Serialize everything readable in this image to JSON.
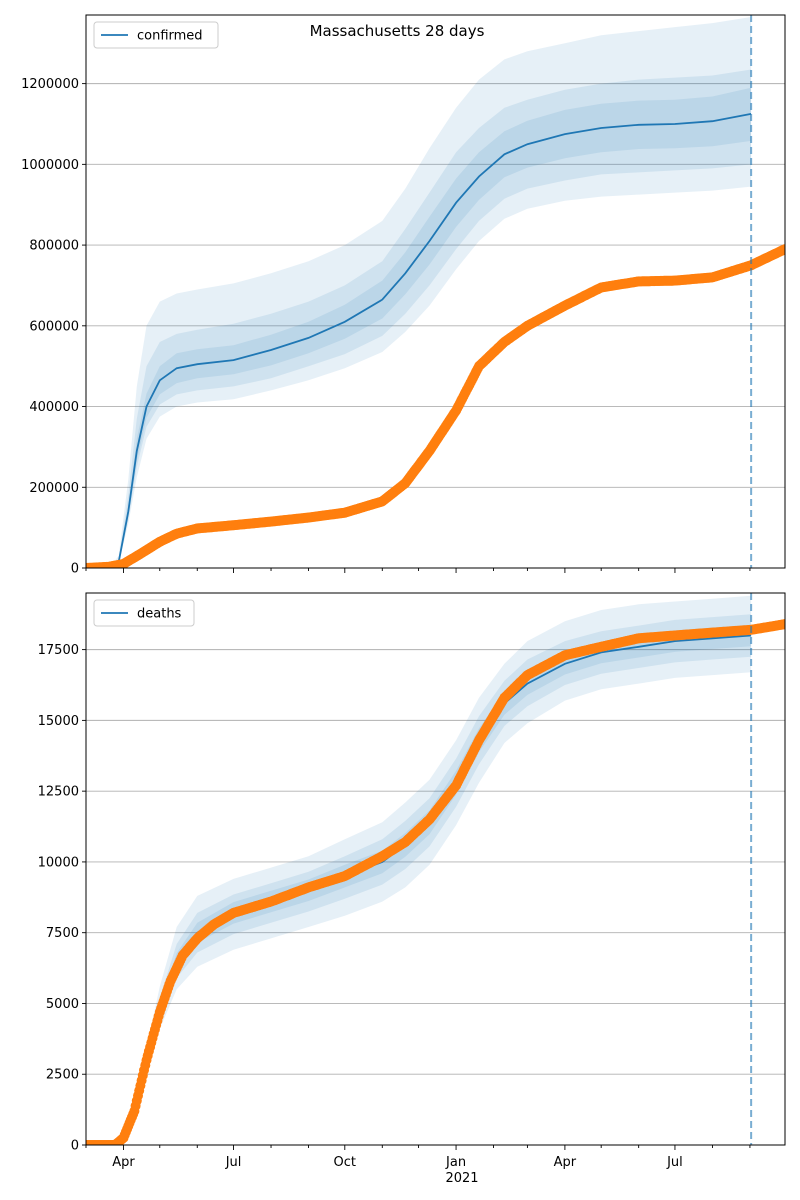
{
  "figure": {
    "title": "Massachusetts 28 days"
  },
  "colors": {
    "model": "#1f77b4",
    "observed": "#ff7f0e",
    "band": "#1f77b4",
    "grid": "#b0b0b0",
    "forecast_line": "#1f77b4"
  },
  "x_axis": {
    "type": "date",
    "range": [
      "2020-03-01",
      "2021-09-30"
    ],
    "major_ticks": [
      {
        "date": "2020-04-01",
        "label": "Apr"
      },
      {
        "date": "2020-07-01",
        "label": "Jul"
      },
      {
        "date": "2020-10-01",
        "label": "Oct"
      },
      {
        "date": "2021-01-01",
        "label": "Jan"
      },
      {
        "date": "2021-04-01",
        "label": "Apr"
      },
      {
        "date": "2021-07-01",
        "label": "Jul"
      }
    ],
    "year_label": "2021",
    "forecast_date": "2021-09-02"
  },
  "chart_data": [
    {
      "type": "line",
      "legend": "confirmed",
      "legend_position": "upper-left",
      "grid": "horizontal",
      "ylim": [
        0,
        1370000
      ],
      "yticks": [
        0,
        200000,
        400000,
        600000,
        800000,
        1000000,
        1200000
      ],
      "model": {
        "name": "confirmed",
        "x": [
          "2020-03-01",
          "2020-03-20",
          "2020-03-28",
          "2020-04-05",
          "2020-04-12",
          "2020-04-20",
          "2020-05-01",
          "2020-05-15",
          "2020-06-01",
          "2020-07-01",
          "2020-08-01",
          "2020-09-01",
          "2020-10-01",
          "2020-11-01",
          "2020-11-20",
          "2020-12-10",
          "2021-01-01",
          "2021-01-20",
          "2021-02-10",
          "2021-03-01",
          "2021-04-01",
          "2021-05-01",
          "2021-06-01",
          "2021-07-01",
          "2021-08-01",
          "2021-09-02"
        ],
        "y": [
          0,
          0,
          15000,
          140000,
          290000,
          400000,
          465000,
          495000,
          505000,
          515000,
          540000,
          570000,
          610000,
          665000,
          730000,
          810000,
          905000,
          970000,
          1025000,
          1050000,
          1075000,
          1090000,
          1098000,
          1100000,
          1107000,
          1125000
        ],
        "bands": [
          {
            "lower": [
              0,
              0,
              9000,
              110000,
              225000,
              320000,
              375000,
              400000,
              410000,
              418000,
              440000,
              465000,
              495000,
              535000,
              585000,
              650000,
              740000,
              810000,
              865000,
              890000,
              910000,
              920000,
              925000,
              930000,
              935000,
              945000
            ],
            "upper": [
              0,
              0,
              30000,
              220000,
              450000,
              600000,
              660000,
              680000,
              690000,
              705000,
              730000,
              760000,
              800000,
              860000,
              940000,
              1040000,
              1140000,
              1210000,
              1260000,
              1280000,
              1300000,
              1320000,
              1330000,
              1340000,
              1350000,
              1365000
            ]
          },
          {
            "lower": [
              0,
              0,
              11000,
              120000,
              250000,
              350000,
              405000,
              430000,
              440000,
              450000,
              470000,
              500000,
              530000,
              575000,
              630000,
              700000,
              790000,
              860000,
              915000,
              940000,
              960000,
              975000,
              980000,
              985000,
              990000,
              1000000
            ],
            "upper": [
              0,
              0,
              22000,
              180000,
              370000,
              500000,
              560000,
              580000,
              590000,
              605000,
              630000,
              660000,
              700000,
              760000,
              840000,
              930000,
              1030000,
              1090000,
              1140000,
              1160000,
              1185000,
              1200000,
              1210000,
              1215000,
              1220000,
              1235000
            ]
          },
          {
            "lower": [
              0,
              0,
              13000,
              128000,
              265000,
              372000,
              430000,
              458000,
              470000,
              480000,
              502000,
              532000,
              568000,
              618000,
              678000,
              752000,
              845000,
              912000,
              968000,
              992000,
              1015000,
              1030000,
              1038000,
              1040000,
              1045000,
              1058000
            ],
            "upper": [
              0,
              0,
              18000,
              155000,
              320000,
              432000,
              500000,
              532000,
              542000,
              552000,
              578000,
              610000,
              652000,
              712000,
              782000,
              870000,
              965000,
              1030000,
              1082000,
              1108000,
              1135000,
              1150000,
              1158000,
              1160000,
              1168000,
              1190000
            ]
          }
        ]
      },
      "observed": {
        "x": [
          "2020-03-01",
          "2020-03-20",
          "2020-04-01",
          "2020-04-15",
          "2020-05-01",
          "2020-05-15",
          "2020-06-01",
          "2020-07-01",
          "2020-08-01",
          "2020-09-01",
          "2020-10-01",
          "2020-11-01",
          "2020-11-20",
          "2020-12-10",
          "2021-01-01",
          "2021-01-20",
          "2021-02-10",
          "2021-03-01",
          "2021-04-01",
          "2021-05-01",
          "2021-06-01",
          "2021-07-01",
          "2021-08-01",
          "2021-09-02",
          "2021-09-30"
        ],
        "y": [
          0,
          3000,
          10000,
          35000,
          65000,
          85000,
          98000,
          106000,
          115000,
          125000,
          137000,
          165000,
          210000,
          290000,
          390000,
          500000,
          560000,
          600000,
          650000,
          695000,
          710000,
          712000,
          720000,
          750000,
          790000
        ]
      }
    },
    {
      "type": "line",
      "legend": "deaths",
      "legend_position": "upper-left",
      "grid": "horizontal",
      "ylim": [
        0,
        19500
      ],
      "yticks": [
        0,
        2500,
        5000,
        7500,
        10000,
        12500,
        15000,
        17500
      ],
      "model": {
        "name": "deaths",
        "x": [
          "2020-03-01",
          "2020-03-20",
          "2020-04-01",
          "2020-04-15",
          "2020-05-01",
          "2020-05-15",
          "2020-06-01",
          "2020-07-01",
          "2020-08-01",
          "2020-09-01",
          "2020-10-01",
          "2020-11-01",
          "2020-11-20",
          "2020-12-10",
          "2021-01-01",
          "2021-01-20",
          "2021-02-10",
          "2021-03-01",
          "2021-04-01",
          "2021-05-01",
          "2021-06-01",
          "2021-07-01",
          "2021-08-01",
          "2021-09-02"
        ],
        "y": [
          0,
          0,
          200,
          2000,
          4800,
          6500,
          7500,
          8200,
          8600,
          9000,
          9500,
          10000,
          10600,
          11400,
          12800,
          14300,
          15600,
          16300,
          17000,
          17400,
          17600,
          17800,
          17900,
          18000
        ],
        "bands": [
          {
            "lower": [
              0,
              0,
              150,
              1700,
              4100,
              5500,
              6300,
              6900,
              7300,
              7700,
              8100,
              8600,
              9100,
              9900,
              11300,
              12800,
              14200,
              14900,
              15700,
              16100,
              16300,
              16500,
              16600,
              16700
            ],
            "upper": [
              0,
              0,
              260,
              2400,
              5600,
              7700,
              8800,
              9400,
              9800,
              10200,
              10800,
              11400,
              12100,
              12900,
              14300,
              15800,
              17000,
              17800,
              18500,
              18900,
              19100,
              19200,
              19300,
              19400
            ]
          },
          {
            "lower": [
              0,
              0,
              170,
              1850,
              4400,
              5900,
              6800,
              7450,
              7850,
              8250,
              8700,
              9200,
              9750,
              10550,
              11950,
              13450,
              14800,
              15500,
              16250,
              16650,
              16850,
              17050,
              17150,
              17250
            ],
            "upper": [
              0,
              0,
              230,
              2200,
              5200,
              7100,
              8200,
              8850,
              9250,
              9650,
              10200,
              10800,
              11450,
              12250,
              13650,
              15150,
              16400,
              17150,
              17800,
              18150,
              18350,
              18550,
              18650,
              18750
            ]
          },
          {
            "lower": [
              0,
              0,
              185,
              1930,
              4620,
              6220,
              7150,
              7820,
              8220,
              8620,
              9100,
              9600,
              10180,
              10980,
              12380,
              13880,
              15200,
              15900,
              16620,
              17020,
              17220,
              17420,
              17520,
              17620
            ],
            "upper": [
              0,
              0,
              215,
              2080,
              4980,
              6780,
              7850,
              8580,
              8980,
              9380,
              9900,
              10400,
              11020,
              11820,
              13220,
              14720,
              16000,
              16700,
              17380,
              17780,
              17980,
              18180,
              18280,
              18380
            ]
          }
        ]
      },
      "observed": {
        "x": [
          "2020-03-01",
          "2020-03-25",
          "2020-04-01",
          "2020-04-10",
          "2020-04-20",
          "2020-05-01",
          "2020-05-10",
          "2020-05-20",
          "2020-06-01",
          "2020-06-15",
          "2020-07-01",
          "2020-08-01",
          "2020-09-01",
          "2020-10-01",
          "2020-11-01",
          "2020-11-20",
          "2020-12-10",
          "2021-01-01",
          "2021-01-20",
          "2021-02-10",
          "2021-03-01",
          "2021-04-01",
          "2021-05-01",
          "2021-06-01",
          "2021-07-01",
          "2021-08-01",
          "2021-09-02",
          "2021-09-30"
        ],
        "y": [
          0,
          0,
          250,
          1200,
          3000,
          4700,
          5800,
          6700,
          7300,
          7800,
          8200,
          8600,
          9100,
          9500,
          10200,
          10700,
          11500,
          12700,
          14300,
          15800,
          16600,
          17300,
          17600,
          17900,
          18000,
          18100,
          18200,
          18400
        ]
      }
    }
  ]
}
